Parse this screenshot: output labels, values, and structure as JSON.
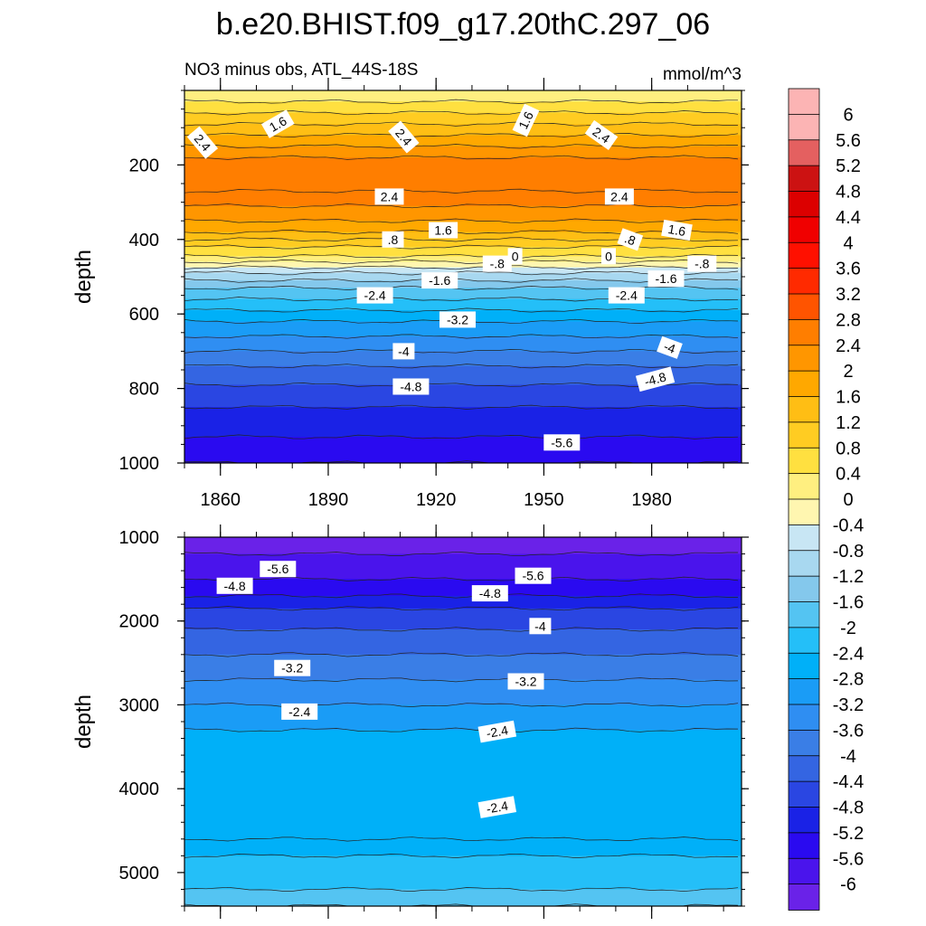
{
  "title": "b.e20.BHIST.f09_g17.20thC.297_06",
  "chart_data": {
    "type": "heatmap",
    "variable_label": "NO3 minus obs, ATL_44S-18S",
    "units": "mmol/m^3",
    "colors": {
      "-6.4": "#7d2ee6",
      "-6": "#6a22e8",
      "-5.6": "#4a14ec",
      "-5.2": "#2a0af0",
      "-4.8": "#1a22e6",
      "-4.4": "#2a46e2",
      "-4": "#3465e2",
      "-3.6": "#3a7ee6",
      "-3.2": "#2f8ef2",
      "-2.8": "#1a9cf6",
      "-2.4": "#00b0f8",
      "-2": "#24bff8",
      "-1.6": "#54c4f2",
      "-1.2": "#84c8ec",
      "-0.8": "#a8d8f0",
      "-0.4": "#c8e6f4",
      "0": "#fff6b0",
      "0.4": "#ffef80",
      "0.8": "#ffe040",
      "1.2": "#ffcc22",
      "1.6": "#ffbe14",
      "2": "#ffa800",
      "2.4": "#ff9600",
      "2.8": "#ff7e00",
      "3.2": "#ff5400",
      "3.6": "#ff2a00",
      "4": "#ff1000",
      "4.4": "#f00000",
      "4.8": "#dc0000",
      "5.2": "#cc1212",
      "5.6": "#e46060",
      "6": "#fcb4b4"
    },
    "colorbar": {
      "levels": [
        "6",
        "5.6",
        "5.2",
        "4.8",
        "4.4",
        "4",
        "3.6",
        "3.2",
        "2.8",
        "2.4",
        "2",
        "1.6",
        "1.2",
        "0.8",
        "0.4",
        "0",
        "-0.4",
        "-0.8",
        "-1.2",
        "-1.6",
        "-2",
        "-2.4",
        "-2.8",
        "-3.2",
        "-3.6",
        "-4",
        "-4.4",
        "-4.8",
        "-5.2",
        "-5.6",
        "-6"
      ]
    },
    "panels": [
      {
        "name": "upper",
        "ylabel": "depth",
        "xlim": [
          1850,
          2005
        ],
        "ylim": [
          0,
          1000
        ],
        "y_reversed": true,
        "xticks": [
          "1860",
          "1890",
          "1920",
          "1950",
          "1980"
        ],
        "yticks": [
          "200",
          "400",
          "600",
          "800",
          "1000"
        ],
        "profile": [
          {
            "depth": 0,
            "value": 0.4
          },
          {
            "depth": 30,
            "value": 0.8
          },
          {
            "depth": 60,
            "value": 1.2
          },
          {
            "depth": 90,
            "value": 1.6
          },
          {
            "depth": 120,
            "value": 2.0
          },
          {
            "depth": 150,
            "value": 2.4
          },
          {
            "depth": 180,
            "value": 2.8
          },
          {
            "depth": 270,
            "value": 2.8
          },
          {
            "depth": 310,
            "value": 2.4
          },
          {
            "depth": 350,
            "value": 2.0
          },
          {
            "depth": 380,
            "value": 1.6
          },
          {
            "depth": 400,
            "value": 1.2
          },
          {
            "depth": 420,
            "value": 0.8
          },
          {
            "depth": 445,
            "value": 0.4
          },
          {
            "depth": 460,
            "value": 0.0
          },
          {
            "depth": 475,
            "value": -0.4
          },
          {
            "depth": 490,
            "value": -0.8
          },
          {
            "depth": 510,
            "value": -1.2
          },
          {
            "depth": 530,
            "value": -1.6
          },
          {
            "depth": 560,
            "value": -2.0
          },
          {
            "depth": 590,
            "value": -2.4
          },
          {
            "depth": 620,
            "value": -2.8
          },
          {
            "depth": 660,
            "value": -3.2
          },
          {
            "depth": 700,
            "value": -3.6
          },
          {
            "depth": 740,
            "value": -4.0
          },
          {
            "depth": 790,
            "value": -4.4
          },
          {
            "depth": 850,
            "value": -4.8
          },
          {
            "depth": 930,
            "value": -5.2
          },
          {
            "depth": 1000,
            "value": -5.6
          }
        ],
        "labels": [
          {
            "text": "1.6",
            "x": 1876,
            "y": 90,
            "angle": -30
          },
          {
            "text": "2.4",
            "x": 1855,
            "y": 140,
            "angle": 50
          },
          {
            "text": "2.4",
            "x": 1911,
            "y": 125,
            "angle": 50
          },
          {
            "text": "1.6",
            "x": 1945,
            "y": 80,
            "angle": -65
          },
          {
            "text": "2.4",
            "x": 1966,
            "y": 120,
            "angle": 35
          },
          {
            "text": "2.4",
            "x": 1907,
            "y": 285,
            "angle": 0
          },
          {
            "text": "2.4",
            "x": 1971,
            "y": 285,
            "angle": 0
          },
          {
            "text": "1.6",
            "x": 1922,
            "y": 375,
            "angle": 0
          },
          {
            "text": "1.6",
            "x": 1987,
            "y": 375,
            "angle": 10
          },
          {
            "text": ".8",
            "x": 1908,
            "y": 400,
            "angle": 0
          },
          {
            "text": ".8",
            "x": 1974,
            "y": 400,
            "angle": 20
          },
          {
            "text": "0",
            "x": 1942,
            "y": 445,
            "angle": 0
          },
          {
            "text": "0",
            "x": 1968,
            "y": 445,
            "angle": 0
          },
          {
            "text": "-.8",
            "x": 1937,
            "y": 465,
            "angle": 0
          },
          {
            "text": "-.8",
            "x": 1994,
            "y": 465,
            "angle": 0
          },
          {
            "text": "-1.6",
            "x": 1921,
            "y": 510,
            "angle": 0
          },
          {
            "text": "-1.6",
            "x": 1984,
            "y": 505,
            "angle": 0
          },
          {
            "text": "-2.4",
            "x": 1903,
            "y": 550,
            "angle": 0
          },
          {
            "text": "-2.4",
            "x": 1973,
            "y": 550,
            "angle": 0
          },
          {
            "text": "-3.2",
            "x": 1926,
            "y": 615,
            "angle": 0
          },
          {
            "text": "-4",
            "x": 1911,
            "y": 700,
            "angle": 0
          },
          {
            "text": "-4",
            "x": 1985,
            "y": 690,
            "angle": 20
          },
          {
            "text": "-4.8",
            "x": 1913,
            "y": 795,
            "angle": 0
          },
          {
            "text": "-4.8",
            "x": 1981,
            "y": 775,
            "angle": -15
          },
          {
            "text": "-5.6",
            "x": 1955,
            "y": 945,
            "angle": 0
          }
        ]
      },
      {
        "name": "lower",
        "ylabel": "depth",
        "xlim": [
          1850,
          2005
        ],
        "ylim": [
          1000,
          5400
        ],
        "y_reversed": true,
        "xticks": [],
        "yticks": [
          "1000",
          "2000",
          "3000",
          "4000",
          "5000"
        ],
        "profile": [
          {
            "depth": 1000,
            "value": -6.0
          },
          {
            "depth": 1200,
            "value": -5.6
          },
          {
            "depth": 1500,
            "value": -5.2
          },
          {
            "depth": 1700,
            "value": -4.8
          },
          {
            "depth": 1850,
            "value": -4.4
          },
          {
            "depth": 2100,
            "value": -4.0
          },
          {
            "depth": 2400,
            "value": -3.6
          },
          {
            "depth": 2700,
            "value": -3.2
          },
          {
            "depth": 3000,
            "value": -2.8
          },
          {
            "depth": 3300,
            "value": -2.4
          },
          {
            "depth": 4600,
            "value": -2.4
          },
          {
            "depth": 4800,
            "value": -2.0
          },
          {
            "depth": 5200,
            "value": -1.6
          },
          {
            "depth": 5400,
            "value": -1.6
          }
        ],
        "labels": [
          {
            "text": "-5.6",
            "x": 1876,
            "y": 1380,
            "angle": 0
          },
          {
            "text": "-4.8",
            "x": 1864,
            "y": 1580,
            "angle": 0
          },
          {
            "text": "-5.6",
            "x": 1947,
            "y": 1460,
            "angle": 0
          },
          {
            "text": "-4.8",
            "x": 1935,
            "y": 1670,
            "angle": 0
          },
          {
            "text": "-4",
            "x": 1949,
            "y": 2060,
            "angle": 0
          },
          {
            "text": "-3.2",
            "x": 1880,
            "y": 2560,
            "angle": 0
          },
          {
            "text": "-3.2",
            "x": 1945,
            "y": 2720,
            "angle": 0
          },
          {
            "text": "-2.4",
            "x": 1882,
            "y": 3080,
            "angle": 0
          },
          {
            "text": "-2.4",
            "x": 1937,
            "y": 3320,
            "angle": -10
          },
          {
            "text": "-2.4",
            "x": 1937,
            "y": 4220,
            "angle": -10
          }
        ]
      }
    ]
  }
}
